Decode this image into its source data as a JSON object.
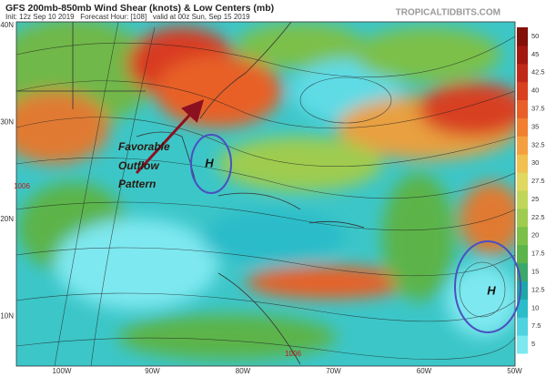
{
  "header": {
    "title": "GFS 200mb-850mb Wind Shear (knots) & Low Centers (mb)",
    "subtitle": "Init: 12z Sep 10 2019   Forecast Hour: [108]   valid at 00z Sun, Sep 15 2019",
    "site": "TROPICALTIDBITS.COM"
  },
  "map": {
    "lat_labels": [
      "40N",
      "30N",
      "20N",
      "10N"
    ],
    "lon_labels": [
      "100W",
      "90W",
      "80W",
      "70W",
      "60W",
      "50W"
    ],
    "annotation": [
      "Favorable",
      "Outflow",
      "Pattern"
    ],
    "highs": [
      "H",
      "H"
    ],
    "lows": [
      "1006",
      "1006"
    ]
  },
  "colorbar": {
    "values": [
      5,
      7.5,
      10,
      12.5,
      15,
      17.5,
      20,
      22.5,
      25,
      27.5,
      30,
      32.5,
      35,
      37.5,
      40,
      42.5,
      45,
      50
    ],
    "colors": [
      "#7ee8f0",
      "#4fd3e0",
      "#2bbcc9",
      "#1fa7a8",
      "#3aa86a",
      "#5cb44a",
      "#7cc04a",
      "#9fcc50",
      "#c0d65a",
      "#e0d860",
      "#f0c050",
      "#f5a040",
      "#f08030",
      "#e86028",
      "#d84020",
      "#c02818",
      "#a01810",
      "#801008"
    ]
  }
}
